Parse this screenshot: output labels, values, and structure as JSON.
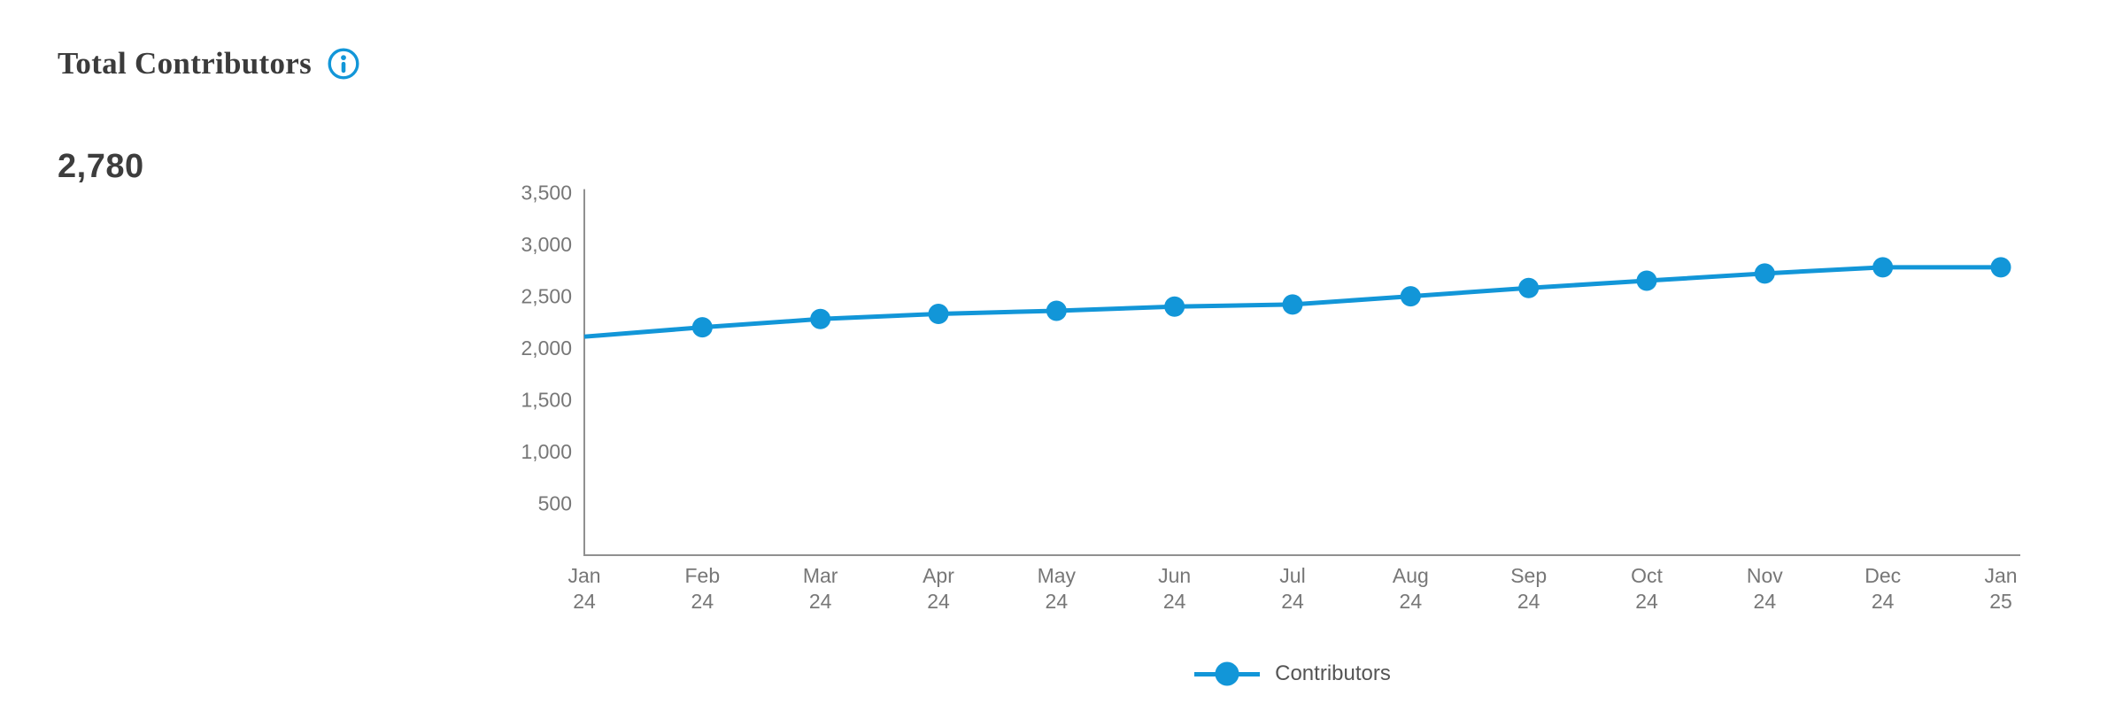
{
  "header": {
    "title": "Total Contributors",
    "icons": {
      "info": "info-circle-i-icon"
    }
  },
  "kpi": {
    "value": "2,780"
  },
  "chart_data": {
    "type": "line",
    "title": "Total Contributors",
    "categories": [
      "Jan 24",
      "Feb 24",
      "Mar 24",
      "Apr 24",
      "May 24",
      "Jun 24",
      "Jul 24",
      "Aug 24",
      "Sep 24",
      "Oct 24",
      "Nov 24",
      "Dec 24",
      "Jan 25"
    ],
    "series": [
      {
        "name": "Contributors",
        "values": [
          2110,
          2200,
          2280,
          2330,
          2360,
          2400,
          2420,
          2500,
          2580,
          2650,
          2720,
          2780,
          2780
        ]
      }
    ],
    "xlabel": "",
    "ylabel": "",
    "ylim": [
      0,
      3500
    ],
    "yticks": [
      500,
      1000,
      1500,
      2000,
      2500,
      3000,
      3500
    ],
    "grid": false,
    "legend_position": "bottom",
    "marker": {
      "shape": "circle",
      "radius": 11.5,
      "first_point_marker_hidden": true
    },
    "line_width": 5,
    "colors": {
      "line": "#1296d8",
      "accent": "#1296d8",
      "axis": "#909090",
      "tick_label": "#777777",
      "legend_label": "#555555"
    }
  }
}
